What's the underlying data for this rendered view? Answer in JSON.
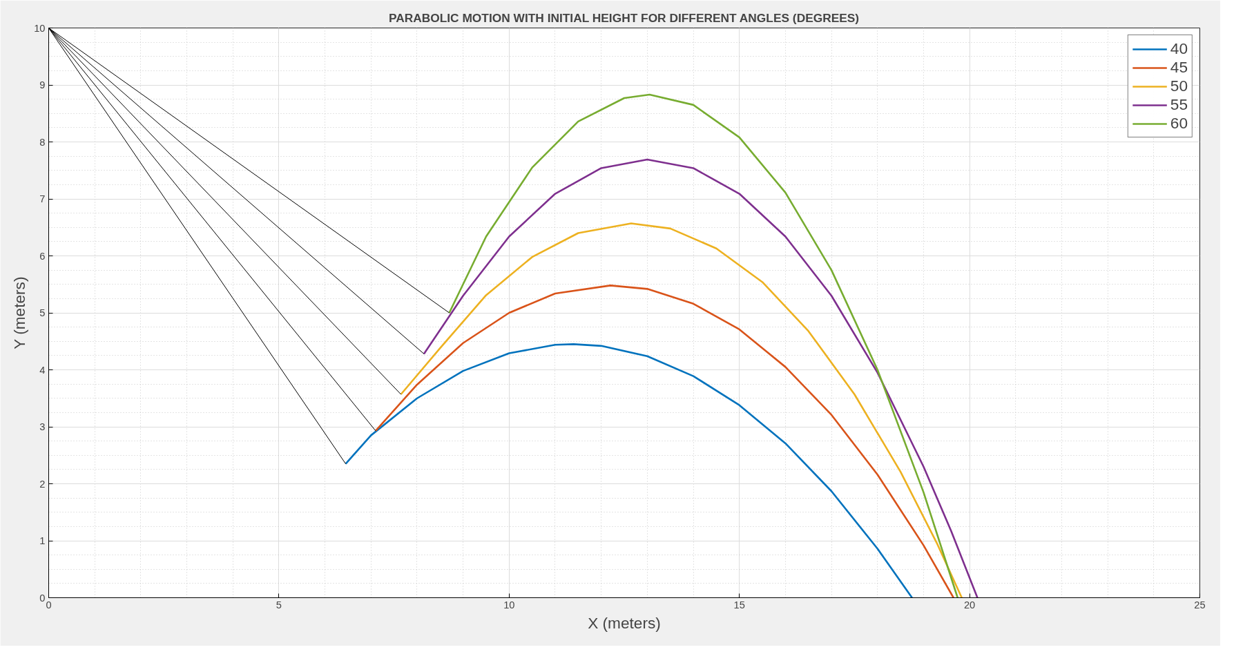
{
  "chart_data": {
    "type": "line",
    "title": "PARABOLIC MOTION WITH INITIAL HEIGHT FOR DIFFERENT ANGLES (DEGREES)",
    "xlabel": "X (meters)",
    "ylabel": "Y (meters)",
    "xlim": [
      0,
      25
    ],
    "ylim": [
      0,
      10
    ],
    "xticks": [
      0,
      5,
      10,
      15,
      20,
      25
    ],
    "yticks": [
      0,
      1,
      2,
      3,
      4,
      5,
      6,
      7,
      8,
      9,
      10
    ],
    "grid": true,
    "legend": "top right",
    "marker": "none",
    "line_style": "solid",
    "series": [
      {
        "name": "40",
        "color": "#0072bd",
        "x": [
          6.45,
          7,
          8,
          9,
          10,
          11,
          11.4,
          12,
          13,
          14,
          15,
          16,
          17,
          18,
          18.75
        ],
        "values": [
          2.35,
          2.85,
          3.5,
          3.98,
          4.29,
          4.44,
          4.45,
          4.42,
          4.24,
          3.89,
          3.38,
          2.71,
          1.87,
          0.86,
          0
        ]
      },
      {
        "name": "45",
        "color": "#d95319",
        "x": [
          7.1,
          8,
          9,
          10,
          11,
          12.2,
          13,
          14,
          15,
          16,
          17,
          18,
          19,
          19.65
        ],
        "values": [
          2.93,
          3.74,
          4.47,
          5.0,
          5.34,
          5.48,
          5.42,
          5.16,
          4.71,
          4.05,
          3.21,
          2.16,
          0.92,
          0
        ]
      },
      {
        "name": "50",
        "color": "#edb120",
        "x": [
          7.65,
          8.5,
          9.5,
          10.5,
          11.5,
          12.65,
          13.5,
          14.5,
          15.5,
          16.5,
          17.5,
          18.5,
          19.3,
          19.83
        ],
        "values": [
          3.57,
          4.38,
          5.31,
          5.98,
          6.4,
          6.57,
          6.48,
          6.13,
          5.54,
          4.68,
          3.57,
          2.21,
          0.94,
          0
        ]
      },
      {
        "name": "55",
        "color": "#7e2f8e",
        "x": [
          8.15,
          9,
          10,
          11,
          12,
          13,
          14,
          15,
          16,
          17,
          18,
          19,
          19.6,
          20.17
        ],
        "values": [
          4.28,
          5.3,
          6.34,
          7.09,
          7.54,
          7.69,
          7.54,
          7.09,
          6.34,
          5.3,
          3.95,
          2.3,
          1.17,
          0
        ]
      },
      {
        "name": "60",
        "color": "#77ac30",
        "x": [
          8.7,
          9.5,
          10.5,
          11.5,
          12.5,
          13.05,
          14,
          15,
          16,
          17,
          18,
          19,
          19.74
        ],
        "values": [
          5.0,
          6.34,
          7.55,
          8.36,
          8.77,
          8.83,
          8.65,
          8.08,
          7.11,
          5.75,
          4.0,
          1.85,
          0
        ]
      },
      {
        "color": "#000000",
        "x": [
          0,
          6.45
        ],
        "values": [
          10,
          2.35
        ]
      },
      {
        "color": "#000000",
        "x": [
          0,
          7.1
        ],
        "values": [
          10,
          2.93
        ]
      },
      {
        "color": "#000000",
        "x": [
          0,
          7.65
        ],
        "values": [
          10,
          3.57
        ]
      },
      {
        "color": "#000000",
        "x": [
          0,
          8.15
        ],
        "values": [
          10,
          4.28
        ]
      },
      {
        "color": "#000000",
        "x": [
          0,
          8.7
        ],
        "values": [
          10,
          5.0
        ]
      }
    ]
  }
}
